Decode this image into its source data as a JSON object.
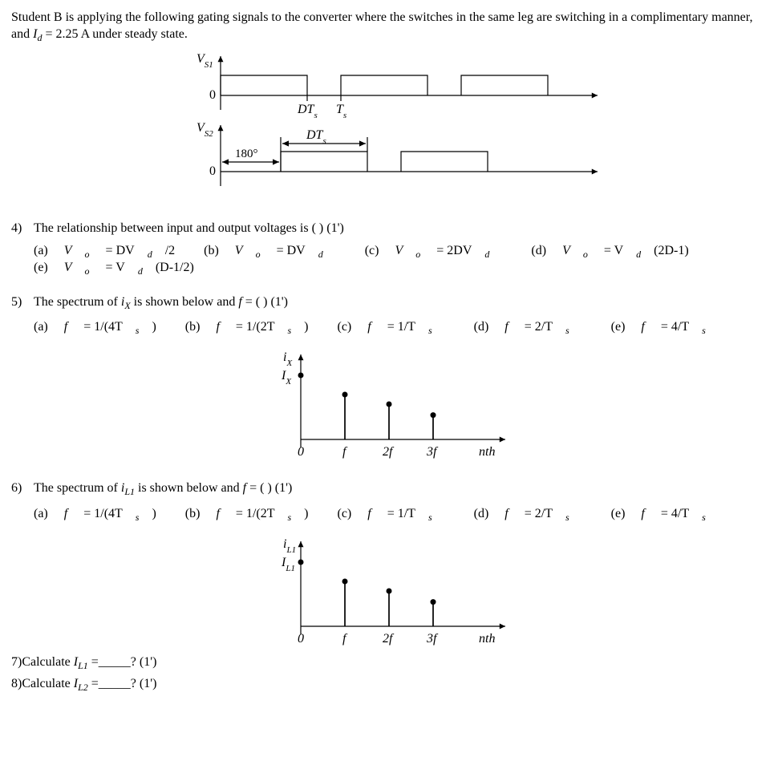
{
  "intro": {
    "text_before_var": "Student B is applying the following gating signals to the converter where the switches in the same leg are switching in a complimentary manner, and ",
    "var_symbol": "I",
    "var_sub": "d",
    "text_after_var": " = 2.25 A under steady state."
  },
  "gating_diagram": {
    "colors": {
      "axis": "#000000",
      "stroke": "#000000",
      "fill": "#ffffff"
    },
    "stroke_width": 1.2,
    "arrow_size": 8,
    "top": {
      "y_label": "V",
      "y_label_sub": "S1",
      "zero_label": "0",
      "tick_DTs_text": "DT",
      "tick_DTs_sub": "s",
      "tick_Ts_text": "T",
      "tick_Ts_sub": "s"
    },
    "bottom": {
      "y_label": "V",
      "y_label_sub": "S2",
      "zero_label": "0",
      "phase_label": "180°",
      "dt_text": "DT",
      "dt_sub": "s"
    }
  },
  "q4": {
    "num": "4)",
    "prompt": "The relationship between input and output voltages is (   ) (1')",
    "options": {
      "a": "(a) Vₒ = DVd/2",
      "b": "(b) Vₒ = DVd",
      "c": "(c) Vₒ = 2DVd",
      "d": "(d) Vₒ = Vd(2D-1)",
      "e": "(e) Vₒ = Vd(D-1/2)"
    },
    "options_html": {
      "a_pre": "(a) ",
      "a_sym": "V",
      "a_sub": "o",
      "a_rest": " = DV",
      "a_sub2": "d",
      "a_tail": "/2",
      "b_pre": "(b) ",
      "b_sym": "V",
      "b_sub": "o",
      "b_rest": " = DV",
      "b_sub2": "d",
      "b_tail": "",
      "c_pre": "(c) ",
      "c_sym": "V",
      "c_sub": "o",
      "c_rest": " = 2DV",
      "c_sub2": "d",
      "c_tail": "",
      "d_pre": "(d) ",
      "d_sym": "V",
      "d_sub": "o",
      "d_rest": " = V",
      "d_sub2": "d",
      "d_tail": "(2D-1)",
      "e_pre": "(e) ",
      "e_sym": "V",
      "e_sub": "o",
      "e_rest": " = V",
      "e_sub2": "d",
      "e_tail": "(D-1/2)"
    }
  },
  "q5": {
    "num": "5)",
    "prompt_pre": "The spectrum of ",
    "prompt_var": "i",
    "prompt_var_sub": "X",
    "prompt_post": " is shown below and ",
    "prompt_f": "f",
    "prompt_tail": " = (   ) (1')",
    "options": {
      "a_pre": "(a) ",
      "a_f": "f",
      "a_rest": " = 1/(4T",
      "a_sub": "s",
      "a_tail": ")",
      "b_pre": "(b) ",
      "b_f": "f",
      "b_rest": " = 1/(2T",
      "b_sub": "s",
      "b_tail": ")",
      "c_pre": "(c) ",
      "c_f": "f",
      "c_rest": " = 1/T",
      "c_sub": "s",
      "c_tail": "",
      "d_pre": "(d) ",
      "d_f": "f",
      "d_rest": " = 2/T",
      "d_sub": "s",
      "d_tail": "",
      "e_pre": "(e) ",
      "e_f": "f",
      "e_rest": " = 4/T",
      "e_sub": "s",
      "e_tail": ""
    },
    "spectrum": {
      "y_label": "i",
      "y_label_sub": "X",
      "dc_label": "I",
      "dc_label_sub": "X",
      "x_ticks": [
        "0",
        "f",
        "2f",
        "3f",
        "nth"
      ],
      "heights": [
        1.0,
        0.7,
        0.55,
        0.38
      ],
      "marker_radius": 3.5,
      "axis_color": "#000000",
      "stroke_width": 1.2
    }
  },
  "q6": {
    "num": "6)",
    "prompt_pre": "The spectrum of ",
    "prompt_var": "i",
    "prompt_var_sub": "L1",
    "prompt_post": " is shown below and ",
    "prompt_f": "f",
    "prompt_tail": " = (   ) (1')",
    "options": {
      "a_pre": "(a) ",
      "a_f": "f",
      "a_rest": " = 1/(4T",
      "a_sub": "s",
      "a_tail": ")",
      "b_pre": "(b) ",
      "b_f": "f",
      "b_rest": " = 1/(2T",
      "b_sub": "s",
      "b_tail": ")",
      "c_pre": "(c) ",
      "c_f": "f",
      "c_rest": " = 1/T",
      "c_sub": "s",
      "c_tail": "",
      "d_pre": "(d) ",
      "d_f": "f",
      "d_rest": " = 2/T",
      "d_sub": "s",
      "d_tail": "",
      "e_pre": "(e) ",
      "e_f": "f",
      "e_rest": " = 4/T",
      "e_sub": "s",
      "e_tail": ""
    },
    "spectrum": {
      "y_label": "i",
      "y_label_sub": "L1",
      "dc_label": "I",
      "dc_label_sub": "L1",
      "x_ticks": [
        "0",
        "f",
        "2f",
        "3f",
        "nth"
      ],
      "heights": [
        1.0,
        0.7,
        0.55,
        0.38
      ],
      "marker_radius": 3.5,
      "axis_color": "#000000",
      "stroke_width": 1.2
    }
  },
  "q7": {
    "num": "7)",
    "pre": "Calculate ",
    "sym": "I",
    "sub": "L1",
    "tail": " =_____? (1')"
  },
  "q8": {
    "num": "8)",
    "pre": "Calculate ",
    "sym": "I",
    "sub": "L2",
    "tail": " =_____? (1')"
  }
}
